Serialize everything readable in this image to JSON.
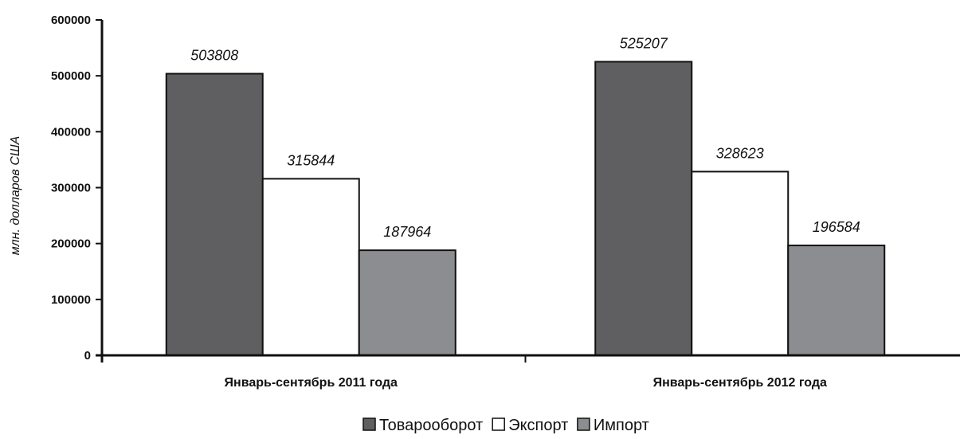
{
  "chart_data": {
    "type": "bar",
    "categories": [
      "Январь-сентябрь 2011 года",
      "Январь-сентябрь 2012 года"
    ],
    "series": [
      {
        "name": "Товарооборот",
        "values": [
          503808,
          525207
        ],
        "color": "#5f5f61"
      },
      {
        "name": "Экспорт",
        "values": [
          315844,
          328623
        ],
        "color": "#ffffff"
      },
      {
        "name": "Импорт",
        "values": [
          187964,
          196584
        ],
        "color": "#8c8d90"
      }
    ],
    "data_labels": [
      [
        "503808",
        "525207"
      ],
      [
        "315844",
        "328623"
      ],
      [
        "187964",
        "196584"
      ]
    ],
    "ylabel": "млн. долларов США",
    "ylim": [
      0,
      600000
    ],
    "yticks": [
      "0",
      "100000",
      "200000",
      "300000",
      "400000",
      "500000",
      "600000"
    ],
    "grid": false,
    "legend_position": "bottom-center"
  }
}
